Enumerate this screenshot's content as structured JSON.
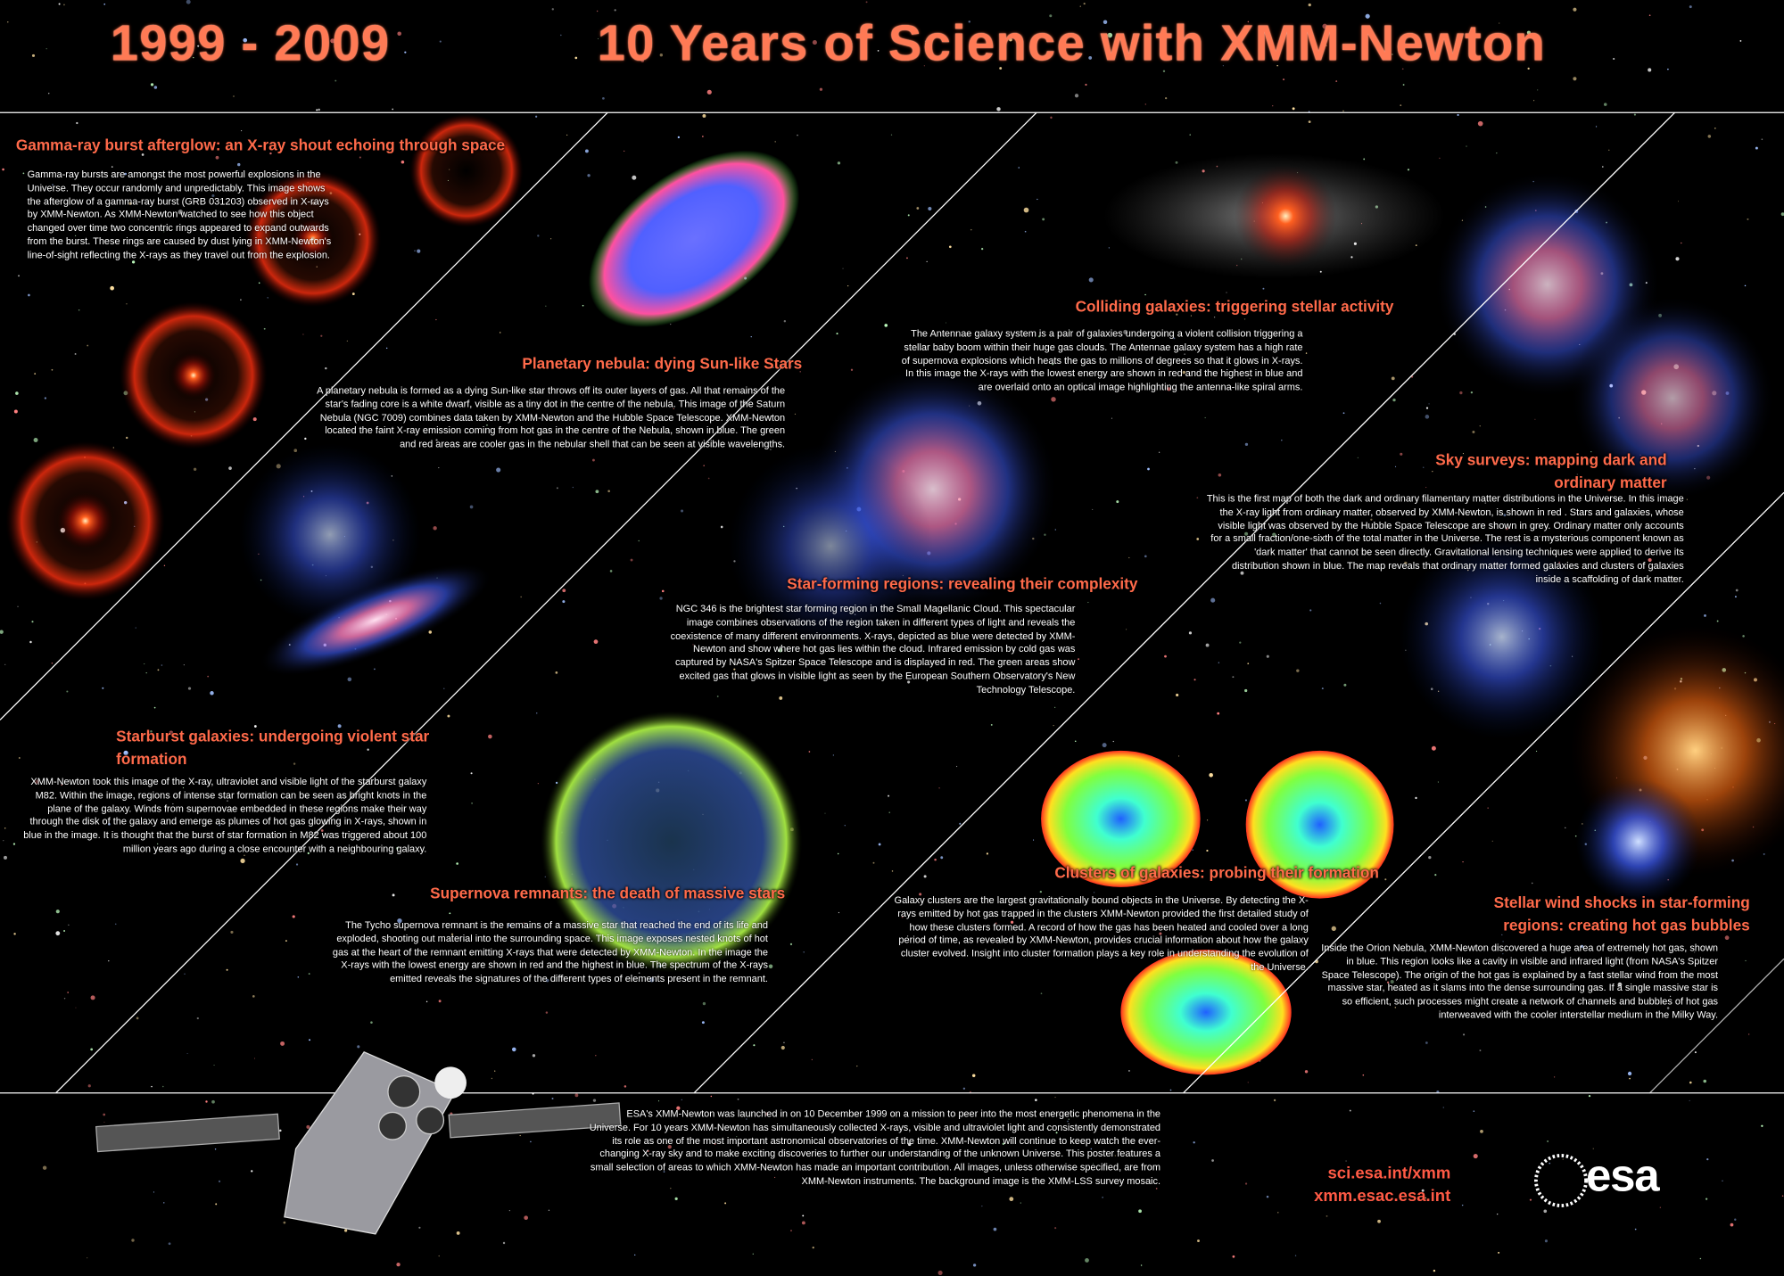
{
  "header": {
    "date_range": "1999 - 2009",
    "title": "10 Years of Science with XMM-Newton"
  },
  "panels": [
    {
      "title": "Gamma-ray burst afterglow: an X-ray shout echoing through space",
      "body": "Gamma-ray bursts are amongst the most powerful explosions in the Universe. They occur randomly and unpredictably. This image shows the afterglow of a gamma-ray burst (GRB 031203) observed in X-rays by XMM-Newton. As XMM-Newton watched to see how this object changed over time two concentric rings appeared to expand outwards from the burst. These rings are caused by dust lying in XMM-Newton's line-of-sight reflecting the X-rays as they travel out from the explosion."
    },
    {
      "title": "Planetary nebula: dying Sun-like Stars",
      "body": "A planetary nebula is formed as a dying Sun-like star throws off its outer layers of gas. All that remains of the star's fading core is a white dwarf, visible as a tiny dot in the centre of the nebula. This image of the Saturn Nebula (NGC 7009) combines data taken by XMM-Newton and the Hubble Space Telescope. XMM-Newton located the faint X-ray emission coming from hot gas in the centre of the Nebula, shown in blue. The green and red areas are cooler gas in the nebular shell that can be seen at visible wavelengths."
    },
    {
      "title": "Colliding galaxies: triggering stellar activity",
      "body": "The Antennae galaxy system is a pair of galaxies undergoing a violent collision triggering a stellar baby boom within their huge gas clouds. The Antennae galaxy system has a high rate of supernova explosions which heats the gas to millions of degrees so that it glows in X-rays. In this image the X-rays with the lowest energy are shown in red and the highest in blue and are overlaid onto an optical image highlighting the antenna-like spiral arms."
    },
    {
      "title": "Sky surveys: mapping dark and ordinary matter",
      "body": "This is the first map of both the dark and ordinary filamentary matter distributions in the Universe. In this image the X-ray light from ordinary matter, observed by XMM-Newton, is shown in red . Stars and galaxies, whose visible light was observed by the Hubble Space Telescope are shown in grey. Ordinary matter only accounts for a small fraction/one-sixth of the total matter in the Universe. The rest is a mysterious component known as 'dark matter' that cannot be seen directly. Gravitational lensing techniques were applied to derive its distribution shown in blue. The map reveals that ordinary matter formed galaxies and clusters of galaxies inside a scaffolding of dark matter."
    },
    {
      "title": "Star-forming regions: revealing their complexity",
      "body": "NGC 346 is the brightest star forming region in the Small Magellanic Cloud. This spectacular image combines observations of the region taken in different types of light and reveals the coexistence of many different environments. X-rays, depicted as blue were detected by XMM-Newton and show where hot gas lies within the cloud. Infrared emission by cold gas was captured by NASA's Spitzer Space Telescope and is displayed in red. The green areas show excited gas that glows in visible light as seen by the European Southern Observatory's New Technology Telescope."
    },
    {
      "title": "Starburst galaxies: undergoing violent star formation",
      "body": "XMM-Newton took this image of the X-ray, ultraviolet and visible light of the starburst galaxy M82. Within the image, regions of intense star formation can be seen as bright knots in the plane of the galaxy. Winds from supernovae embedded in these regions make their way through the disk of the galaxy and emerge as plumes of hot gas glowing in X-rays, shown in blue in the image. It is thought that the burst of star formation in M82 was triggered about 100 million years ago during a close encounter with a neighbouring galaxy."
    },
    {
      "title": "Supernova remnants: the death of massive stars",
      "body": "The Tycho supernova remnant is the remains of a massive star that reached the end of its life and exploded, shooting out material into the surrounding space. This image exposes nested knots of hot gas at the heart of the remnant emitting X-rays that were detected by XMM-Newton. In the image the X-rays with the lowest energy are shown in red and the highest in blue. The spectrum of the X-rays emitted reveals the signatures of the different types of elements present in the remnant."
    },
    {
      "title": "Clusters of galaxies: probing their formation",
      "body": "Galaxy clusters are the largest gravitationally bound objects in the Universe. By detecting the X-rays emitted by hot gas trapped in the clusters XMM-Newton provided the first detailed study of how these clusters formed. A record of how the gas has been heated and cooled over a long period of time, as revealed by XMM-Newton, provides crucial information about how the galaxy cluster evolved. Insight into cluster formation plays a key role in understanding the evolution of the Universe."
    },
    {
      "title": "Stellar wind shocks in star-forming regions: creating hot gas bubbles",
      "body": "Inside the Orion Nebula, XMM-Newton discovered a huge area of extremely hot gas, shown in blue. This region looks like a cavity in visible and infrared light (from NASA's Spitzer Space Telescope). The origin of the hot gas is explained by a fast stellar wind from the most massive star, heated as it slams into the dense surrounding gas. If a single massive star is so efficient, such processes might create a network of channels and bubbles of hot gas interweaved with the cooler interstellar medium in the Milky Way."
    }
  ],
  "footer": {
    "body": "ESA's XMM-Newton was launched in on 10 December 1999 on a mission to peer into the most energetic phenomena in the Universe. For 10 years XMM-Newton has simultaneously collected X-rays, visible and ultraviolet light and consistently demonstrated its role as one of the most important astronomical observatories of the time. XMM-Newton will continue to keep watch the ever-changing X-ray sky and to make exciting discoveries to further our understanding of the unknown Universe. This poster features a small selection of areas to which XMM-Newton has made an important contribution. All images, unless otherwise specified, are from XMM-Newton instruments. The background image is the XMM-LSS survey mosaic.",
    "links": [
      "sci.esa.int/xmm",
      "xmm.esac.esa.int"
    ],
    "logo": "esa"
  }
}
